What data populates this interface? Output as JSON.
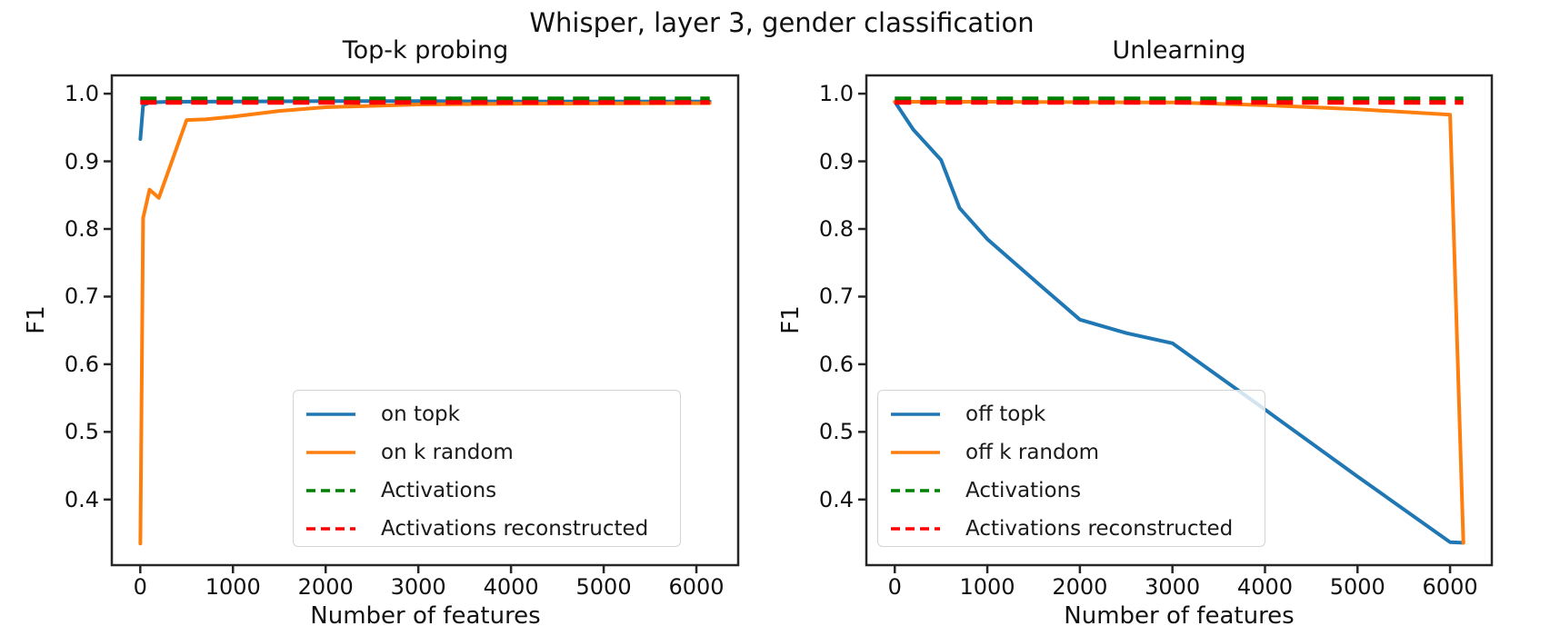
{
  "suptitle": "Whisper, layer 3, gender classification",
  "colors": {
    "blue": "#1f77b4",
    "orange": "#ff7f0e",
    "green": "#008000",
    "red": "#ff0000",
    "axis": "#262626"
  },
  "chart_data": [
    {
      "type": "line",
      "title": "Top-k probing",
      "xlabel": "Number of features",
      "ylabel": "F1",
      "xlim": [
        -307,
        6451
      ],
      "ylim": [
        0.303,
        1.027
      ],
      "xticks": [
        0,
        1000,
        2000,
        3000,
        4000,
        5000,
        6000
      ],
      "yticks": [
        0.4,
        0.5,
        0.6,
        0.7,
        0.8,
        0.9,
        1.0
      ],
      "grid": false,
      "legend_position": "lower center-right inside",
      "series": [
        {
          "name": "on topk",
          "color": "#1f77b4",
          "style": "solid",
          "x": [
            1,
            30,
            100,
            300,
            1000,
            2000,
            3000,
            4000,
            5000,
            6144
          ],
          "y": [
            0.933,
            0.983,
            0.987,
            0.988,
            0.9885,
            0.989,
            0.989,
            0.9885,
            0.9885,
            0.9885
          ]
        },
        {
          "name": "on k random",
          "color": "#ff7f0e",
          "style": "solid",
          "x": [
            1,
            30,
            100,
            200,
            500,
            700,
            1000,
            1500,
            2000,
            3000,
            4000,
            5000,
            6144
          ],
          "y": [
            0.335,
            0.816,
            0.858,
            0.846,
            0.961,
            0.962,
            0.966,
            0.9745,
            0.98,
            0.984,
            0.985,
            0.9855,
            0.986
          ]
        },
        {
          "name": "Activations",
          "color": "#008000",
          "style": "dashed",
          "x": [
            0,
            6144
          ],
          "y": [
            0.9925,
            0.9925
          ]
        },
        {
          "name": "Activations reconstructed",
          "color": "#ff0000",
          "style": "dashed",
          "x": [
            0,
            6144
          ],
          "y": [
            0.987,
            0.987
          ]
        }
      ]
    },
    {
      "type": "line",
      "title": "Unlearning",
      "xlabel": "Number of features",
      "ylabel": "F1",
      "xlim": [
        -307,
        6451
      ],
      "ylim": [
        0.303,
        1.027
      ],
      "xticks": [
        0,
        1000,
        2000,
        3000,
        4000,
        5000,
        6000
      ],
      "yticks": [
        0.4,
        0.5,
        0.6,
        0.7,
        0.8,
        0.9,
        1.0
      ],
      "grid": false,
      "legend_position": "lower center-left inside",
      "series": [
        {
          "name": "off topk",
          "color": "#1f77b4",
          "style": "solid",
          "x": [
            0,
            200,
            500,
            700,
            1000,
            1500,
            2000,
            2500,
            3000,
            4000,
            5000,
            6000,
            6144
          ],
          "y": [
            0.988,
            0.947,
            0.902,
            0.831,
            0.785,
            0.725,
            0.666,
            0.646,
            0.631,
            0.533,
            0.434,
            0.337,
            0.336
          ]
        },
        {
          "name": "off k random",
          "color": "#ff7f0e",
          "style": "solid",
          "x": [
            0,
            1000,
            2000,
            3000,
            4000,
            5000,
            6000,
            6144
          ],
          "y": [
            0.988,
            0.988,
            0.9875,
            0.987,
            0.983,
            0.977,
            0.969,
            0.336
          ]
        },
        {
          "name": "Activations",
          "color": "#008000",
          "style": "dashed",
          "x": [
            0,
            6144
          ],
          "y": [
            0.9925,
            0.9925
          ]
        },
        {
          "name": "Activations reconstructed",
          "color": "#ff0000",
          "style": "dashed",
          "x": [
            0,
            6144
          ],
          "y": [
            0.987,
            0.987
          ]
        }
      ]
    }
  ]
}
